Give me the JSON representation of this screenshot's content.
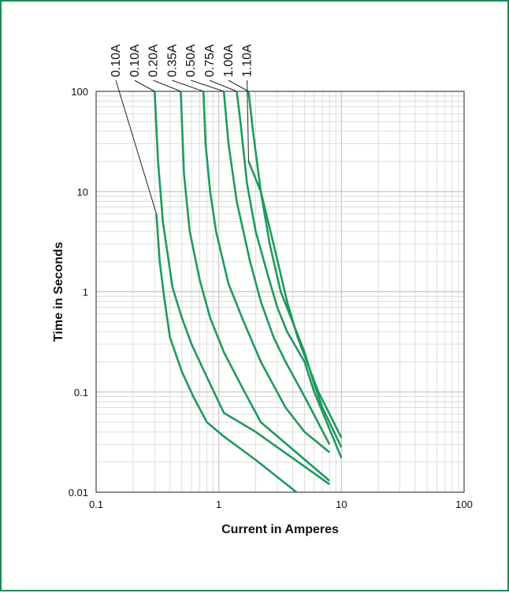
{
  "chart_data": {
    "type": "line",
    "title": "",
    "xlabel": "Current in Amperes",
    "ylabel": "Time in Seconds",
    "xscale": "log",
    "yscale": "log",
    "xlim": [
      0.1,
      100
    ],
    "ylim": [
      0.01,
      100
    ],
    "x_ticks": [
      "0.1",
      "1",
      "10",
      "100"
    ],
    "y_ticks": [
      "0.01",
      "0.1",
      "1",
      "10",
      "100"
    ],
    "grid": true,
    "legend_placement": "top (rotated labels with leader lines)",
    "line_color": "#1f9a5c",
    "series": [
      {
        "name": "0.10A",
        "points": [
          [
            0.31,
            6
          ],
          [
            0.33,
            2
          ],
          [
            0.36,
            0.85
          ],
          [
            0.4,
            0.35
          ],
          [
            0.5,
            0.16
          ],
          [
            0.62,
            0.09
          ],
          [
            0.8,
            0.05
          ],
          [
            1.1,
            0.036
          ],
          [
            2,
            0.021
          ],
          [
            4.3,
            0.01
          ]
        ]
      },
      {
        "name": "0.10A",
        "points": [
          [
            0.3,
            100
          ],
          [
            0.32,
            20
          ],
          [
            0.35,
            5
          ],
          [
            0.42,
            1.1
          ],
          [
            0.5,
            0.55
          ],
          [
            0.6,
            0.3
          ],
          [
            0.78,
            0.15
          ],
          [
            1.1,
            0.062
          ],
          [
            2,
            0.04
          ],
          [
            8,
            0.012
          ]
        ]
      },
      {
        "name": "0.20A",
        "points": [
          [
            0.49,
            100
          ],
          [
            0.52,
            15
          ],
          [
            0.58,
            4
          ],
          [
            0.7,
            1.3
          ],
          [
            0.85,
            0.55
          ],
          [
            1.1,
            0.25
          ],
          [
            1.5,
            0.12
          ],
          [
            2.2,
            0.05
          ],
          [
            8,
            0.013
          ]
        ]
      },
      {
        "name": "0.35A",
        "points": [
          [
            0.75,
            100
          ],
          [
            0.78,
            30
          ],
          [
            0.85,
            10
          ],
          [
            0.95,
            4
          ],
          [
            1.2,
            1.2
          ],
          [
            1.6,
            0.5
          ],
          [
            2.2,
            0.2
          ],
          [
            3.5,
            0.07
          ],
          [
            5,
            0.04
          ],
          [
            8,
            0.025
          ]
        ]
      },
      {
        "name": "0.50A",
        "points": [
          [
            1.1,
            100
          ],
          [
            1.2,
            30
          ],
          [
            1.4,
            8
          ],
          [
            1.8,
            2
          ],
          [
            2.2,
            0.8
          ],
          [
            2.8,
            0.35
          ],
          [
            3.5,
            0.2
          ],
          [
            5,
            0.09
          ],
          [
            8,
            0.03
          ]
        ]
      },
      {
        "name": "0.75A",
        "points": [
          [
            1.4,
            100
          ],
          [
            1.5,
            50
          ],
          [
            1.7,
            12
          ],
          [
            2,
            4
          ],
          [
            2.5,
            1.5
          ],
          [
            3,
            0.7
          ],
          [
            3.6,
            0.4
          ],
          [
            5,
            0.2
          ],
          [
            6,
            0.1
          ],
          [
            10,
            0.022
          ]
        ]
      },
      {
        "name": "1.00A",
        "points": [
          [
            1.75,
            100
          ],
          [
            1.9,
            40
          ],
          [
            2.2,
            10
          ],
          [
            2.6,
            3
          ],
          [
            3.2,
            1
          ],
          [
            4,
            0.5
          ],
          [
            5,
            0.25
          ],
          [
            6,
            0.12
          ],
          [
            7,
            0.07
          ],
          [
            10,
            0.028
          ]
        ]
      },
      {
        "name": "1.10A",
        "points": [
          [
            1.75,
            20
          ],
          [
            2.2,
            10
          ],
          [
            2.9,
            2.5
          ],
          [
            3.6,
            0.8
          ],
          [
            4.4,
            0.35
          ],
          [
            5.4,
            0.18
          ],
          [
            6.5,
            0.1
          ],
          [
            10,
            0.035
          ]
        ]
      }
    ],
    "legend_anchor_x": [
      0.152,
      0.176,
      0.21,
      0.245,
      0.273,
      0.297,
      0.32,
      0.344
    ],
    "series_label_point": [
      [
        0.31,
        6
      ],
      [
        0.3,
        100
      ],
      [
        0.49,
        100
      ],
      [
        0.75,
        100
      ],
      [
        1.1,
        100
      ],
      [
        1.4,
        100
      ],
      [
        1.75,
        100
      ],
      [
        1.75,
        20
      ]
    ]
  }
}
